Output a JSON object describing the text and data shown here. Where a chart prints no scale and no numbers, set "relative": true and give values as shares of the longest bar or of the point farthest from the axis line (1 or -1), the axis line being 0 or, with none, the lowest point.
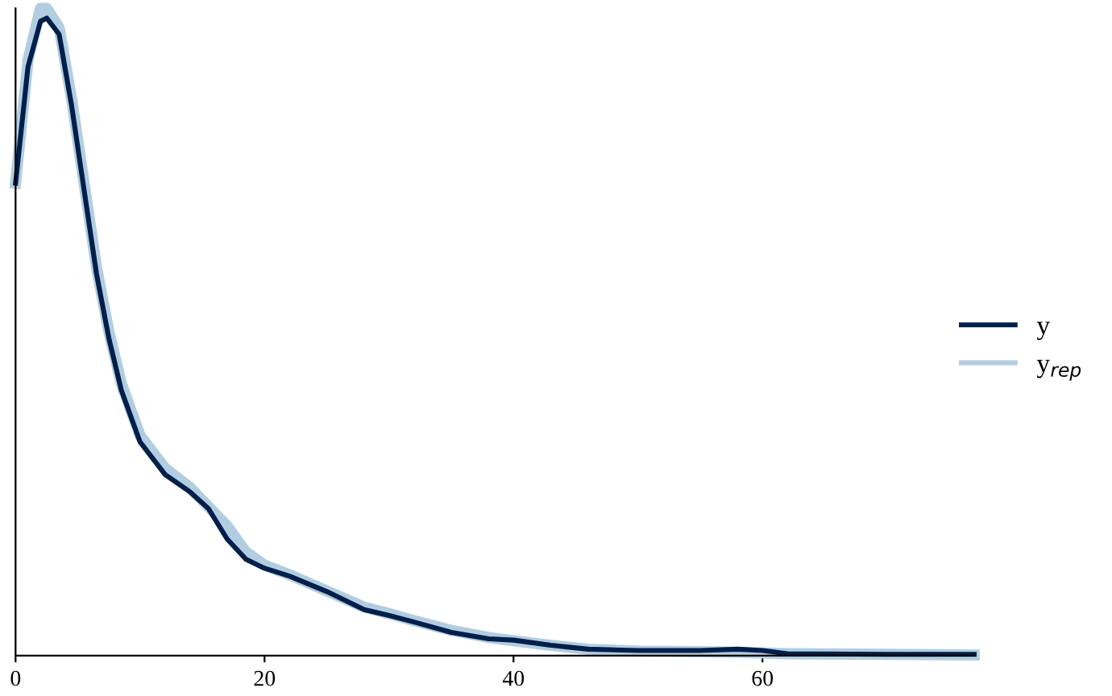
{
  "chart_data": {
    "type": "line",
    "relative": true,
    "x": [
      0,
      1,
      2,
      2.5,
      3.5,
      4.5,
      5.5,
      6.5,
      7.5,
      8.5,
      10,
      12,
      14,
      15.5,
      17,
      18.5,
      20,
      22,
      25,
      28,
      30,
      32,
      35,
      38,
      40,
      43,
      46,
      50,
      55,
      58,
      60,
      62,
      70,
      77
    ],
    "xlim": [
      0,
      77
    ],
    "xticks": [
      0,
      20,
      40,
      60
    ],
    "tick_labels": "x",
    "grid": false,
    "legend": "right",
    "line_style": "solid",
    "marker": "none",
    "series": [
      {
        "name": "y$_{rep}$",
        "color": "#b3cde0",
        "values": [
          0.73,
          0.92,
          1,
          1,
          0.97,
          0.86,
          0.73,
          0.6,
          0.5,
          0.42,
          0.34,
          0.29,
          0.26,
          0.23,
          0.2,
          0.16,
          0.14,
          0.125,
          0.1,
          0.075,
          0.065,
          0.054,
          0.039,
          0.028,
          0.023,
          0.016,
          0.01,
          0.007,
          0.006,
          0.005,
          0.004,
          0.003,
          0.002,
          0.001
        ]
      },
      {
        "name": "y",
        "color": "#011f4b",
        "values": [
          0.73,
          0.91,
          0.98,
          0.985,
          0.96,
          0.85,
          0.72,
          0.59,
          0.49,
          0.41,
          0.33,
          0.28,
          0.253,
          0.227,
          0.18,
          0.149,
          0.135,
          0.123,
          0.099,
          0.071,
          0.062,
          0.052,
          0.036,
          0.026,
          0.024,
          0.016,
          0.01,
          0.008,
          0.008,
          0.01,
          0.008,
          0.003,
          0.002,
          0.002
        ]
      }
    ]
  }
}
